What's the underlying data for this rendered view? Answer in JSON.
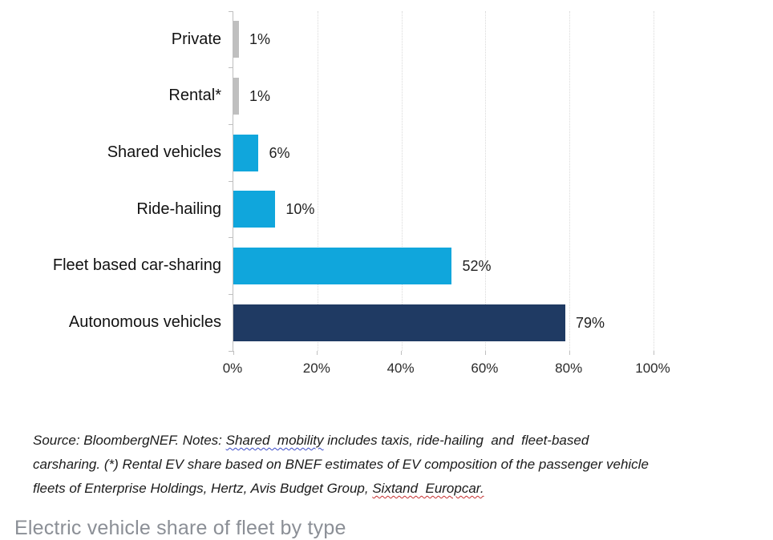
{
  "chart_data": {
    "type": "bar",
    "orientation": "horizontal",
    "title": "Electric vehicle share of fleet by type",
    "categories": [
      "Private",
      "Rental*",
      "Shared vehicles",
      "Ride-hailing",
      "Fleet based car-sharing",
      "Autonomous vehicles"
    ],
    "values": [
      1,
      1,
      6,
      10,
      52,
      79
    ],
    "value_labels": [
      "1%",
      "1%",
      "6%",
      "10%",
      "52%",
      "79%"
    ],
    "bar_colors": [
      "#BFBFBF",
      "#BFBFBF",
      "#10A6DC",
      "#10A6DC",
      "#10A6DC",
      "#1F3A63"
    ],
    "xlim": [
      0,
      100
    ],
    "x_tick_values": [
      0,
      20,
      40,
      60,
      80,
      100
    ],
    "x_tick_labels": [
      "0%",
      "20%",
      "40%",
      "60%",
      "80%",
      "100%"
    ],
    "grid": "vertical-dotted",
    "legend": "none"
  },
  "colors": {
    "gridline": "#D9D9D9",
    "axis": "#BFBFBF",
    "gray_bar": "#BFBFBF",
    "cyan_bar": "#10A6DC",
    "navy_bar": "#1F3A63",
    "note_text": "#1B1B1B",
    "title_text": "#8B8F96",
    "squiggle_blue": "#3B4BC8",
    "squiggle_red": "#C62F2F"
  },
  "footnote": {
    "lines": [
      {
        "segments": [
          {
            "text": "Source: BloombergNEF. Notes: ",
            "underline": "none"
          },
          {
            "text": "Shared  mobility",
            "underline": "blue"
          },
          {
            "text": " includes taxis, ride-hailing  and  fleet-based",
            "underline": "none"
          }
        ]
      },
      {
        "segments": [
          {
            "text": "carsharing. (*) Rental EV share based on BNEF estimates of EV composition of the passenger vehicle",
            "underline": "none"
          }
        ]
      },
      {
        "segments": [
          {
            "text": "fleets of Enterprise Holdings, Hertz, Avis Budget Group, ",
            "underline": "none"
          },
          {
            "text": "Sixtand  Europcar.",
            "underline": "red"
          }
        ]
      }
    ]
  },
  "page_title": "Electric vehicle share of fleet by type"
}
